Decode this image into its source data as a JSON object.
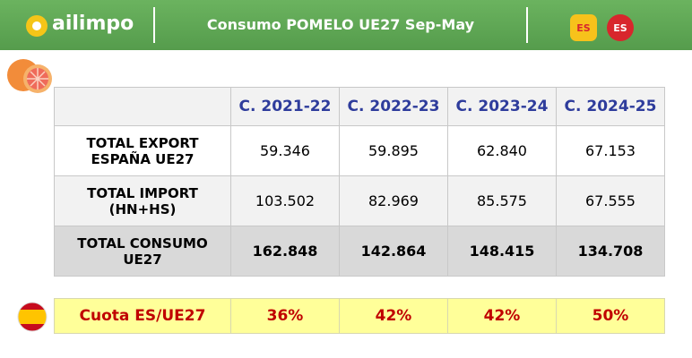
{
  "header": {
    "brand": "ailimpo",
    "title": "Consumo POMELO UE27 Sep-May",
    "badges": [
      "ES",
      "ES"
    ]
  },
  "table": {
    "columns": [
      "C. 2021-22",
      "C. 2022-23",
      "C. 2023-24",
      "C. 2024-25"
    ],
    "rows": [
      {
        "label": "TOTAL EXPORT ESPAÑA UE27",
        "values": [
          "59.346",
          "59.895",
          "62.840",
          "67.153"
        ]
      },
      {
        "label": "TOTAL IMPORT (HN+HS)",
        "values": [
          "103.502",
          "82.969",
          "85.575",
          "67.555"
        ]
      },
      {
        "label": "TOTAL CONSUMO UE27",
        "values": [
          "162.848",
          "142.864",
          "148.415",
          "134.708"
        ]
      }
    ]
  },
  "quota": {
    "label": "Cuota ES/UE27",
    "values": [
      "36%",
      "42%",
      "42%",
      "50%"
    ]
  }
}
